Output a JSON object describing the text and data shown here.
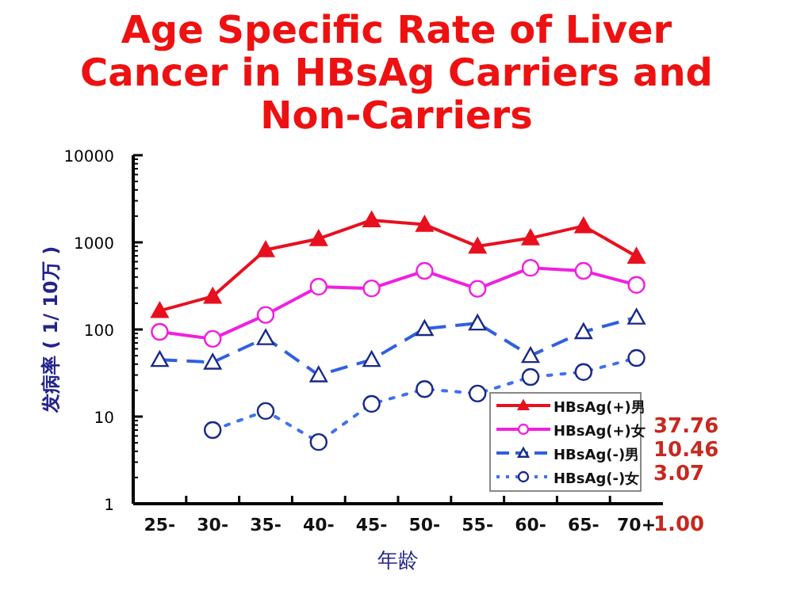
{
  "chart_data": {
    "type": "line",
    "title": "Age Specific Rate of Liver Cancer in HBsAg Carriers and Non-Carriers",
    "xlabel": "年龄",
    "ylabel": "发病率 ( 1/ 10万 )",
    "categories": [
      "25-",
      "30-",
      "35-",
      "40-",
      "45-",
      "50-",
      "55-",
      "60-",
      "65-",
      "70+"
    ],
    "log": "y",
    "ylim": [
      1,
      10000
    ],
    "yticks": [
      1,
      10,
      100,
      1000,
      10000
    ],
    "grid": false,
    "legend": "bottom right",
    "series": [
      {
        "name": "HBsAg(+)男",
        "color": "#e8101e",
        "marker": "triangle",
        "line_style": "solid",
        "values": [
          164,
          240,
          820,
          1100,
          1800,
          1600,
          900,
          1120,
          1540,
          690
        ]
      },
      {
        "name": "HBsAg(+)女",
        "color": "#f020e0",
        "marker": "circle",
        "line_style": "solid",
        "values": [
          94,
          78,
          147,
          310,
          296,
          470,
          293,
          510,
          470,
          325
        ]
      },
      {
        "name": "HBsAg(-)男",
        "color": "#3060e0",
        "marker": "triangle",
        "line_style": "dashed",
        "values": [
          45,
          42,
          80,
          30,
          45,
          102,
          118,
          50,
          94,
          138
        ]
      },
      {
        "name": "HBsAg(-)女",
        "color": "#4070f0",
        "marker": "circle",
        "line_style": "dotted",
        "values": [
          null,
          7,
          11.6,
          5.1,
          14,
          20.7,
          18.4,
          28.5,
          32.5,
          47
        ]
      }
    ],
    "annotations": [
      "37.76",
      "10.46",
      "3.07",
      "1.00"
    ]
  }
}
